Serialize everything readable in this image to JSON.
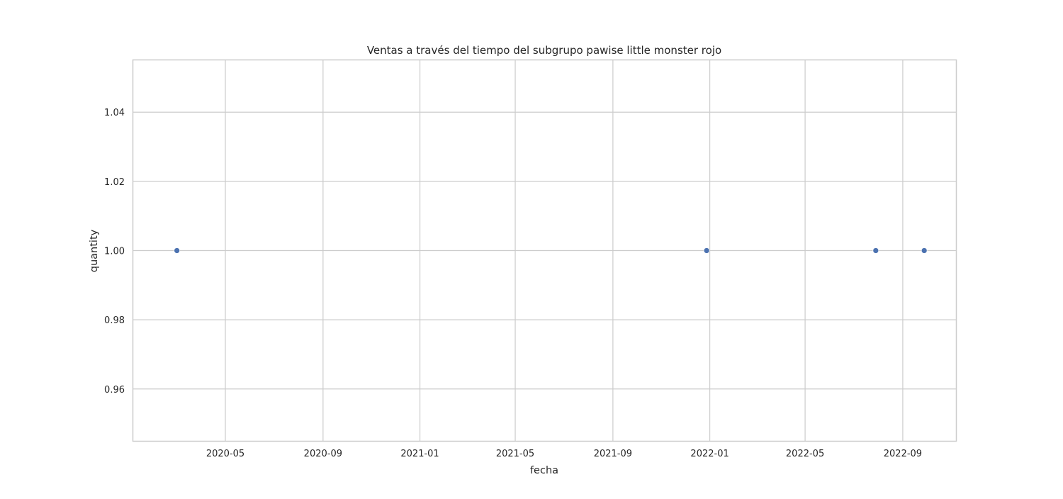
{
  "chart_data": {
    "type": "scatter",
    "title": "Ventas a través del tiempo del subgrupo pawise little monster rojo",
    "xlabel": "fecha",
    "ylabel": "quantity",
    "x_axis_type": "date",
    "xlim": [
      "2020-01-06",
      "2022-11-07"
    ],
    "ylim": [
      0.945,
      1.055
    ],
    "x_ticks": [
      "2020-05",
      "2020-09",
      "2021-01",
      "2021-05",
      "2021-09",
      "2022-01",
      "2022-05",
      "2022-09"
    ],
    "y_ticks": [
      "0.96",
      "0.98",
      "1.00",
      "1.02",
      "1.04"
    ],
    "grid": true,
    "legend": false,
    "colors": {
      "points": "#4c72b0",
      "grid": "#cccccc",
      "background": "#ffffff"
    },
    "series": [
      {
        "points": [
          {
            "x": "2020-03-01",
            "y": 1
          },
          {
            "x": "2021-12-28",
            "y": 1
          },
          {
            "x": "2022-07-29",
            "y": 1
          },
          {
            "x": "2022-09-28",
            "y": 1
          }
        ]
      }
    ]
  }
}
